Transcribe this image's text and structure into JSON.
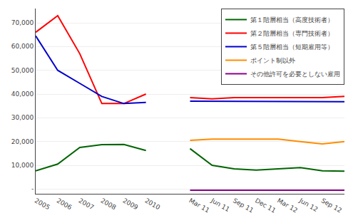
{
  "chart_data": {
    "type": "line",
    "categories": [
      "2005",
      "2006",
      "2007",
      "2008",
      "2009",
      "2010",
      null,
      "Mar 11",
      "Jun 11",
      "Sep 11",
      "Dec 11",
      "Mar 12",
      "Jun 12",
      "Sep 12",
      null
    ],
    "series": [
      {
        "name": "第１階層相当（高度技術者）",
        "color": "#006400",
        "values": [
          7700,
          10500,
          17500,
          18700,
          18800,
          16200,
          null,
          17000,
          10000,
          8500,
          8000,
          8500,
          9000,
          7700,
          7500
        ]
      },
      {
        "name": "第２階層相当（専門技術者）",
        "color": "#ff0000",
        "values": [
          66000,
          73000,
          57000,
          36000,
          36000,
          40000,
          null,
          38500,
          38000,
          38500,
          38500,
          38500,
          38500,
          38500,
          39000
        ]
      },
      {
        "name": "第５階層相当（短期雇用等）",
        "color": "#0000cd",
        "values": [
          64500,
          50000,
          44500,
          39000,
          36000,
          36500,
          null,
          37000,
          37000,
          37000,
          37000,
          37000,
          37000,
          36800,
          36800
        ]
      },
      {
        "name": "ポイント制以外",
        "color": "#ff8c00",
        "values": [
          null,
          null,
          null,
          null,
          null,
          null,
          null,
          20500,
          21000,
          21000,
          21000,
          21000,
          20000,
          19000,
          20000
        ]
      },
      {
        "name": "その他許可を必要としない雇用",
        "color": "#8b008b",
        "values": [
          null,
          null,
          null,
          null,
          null,
          null,
          null,
          -500,
          -500,
          -500,
          -500,
          -500,
          -500,
          -500,
          -500
        ]
      }
    ],
    "ylim": [
      -2000,
      76000
    ],
    "yticks": [
      {
        "value": 0,
        "label": "-"
      },
      {
        "value": 10000,
        "label": "10,000"
      },
      {
        "value": 20000,
        "label": "20,000"
      },
      {
        "value": 30000,
        "label": "30,000"
      },
      {
        "value": 40000,
        "label": "40,000"
      },
      {
        "value": 50000,
        "label": "50,000"
      },
      {
        "value": 60000,
        "label": "60,000"
      },
      {
        "value": 70000,
        "label": "70,000"
      }
    ],
    "grid": true,
    "legend": "upper right"
  }
}
